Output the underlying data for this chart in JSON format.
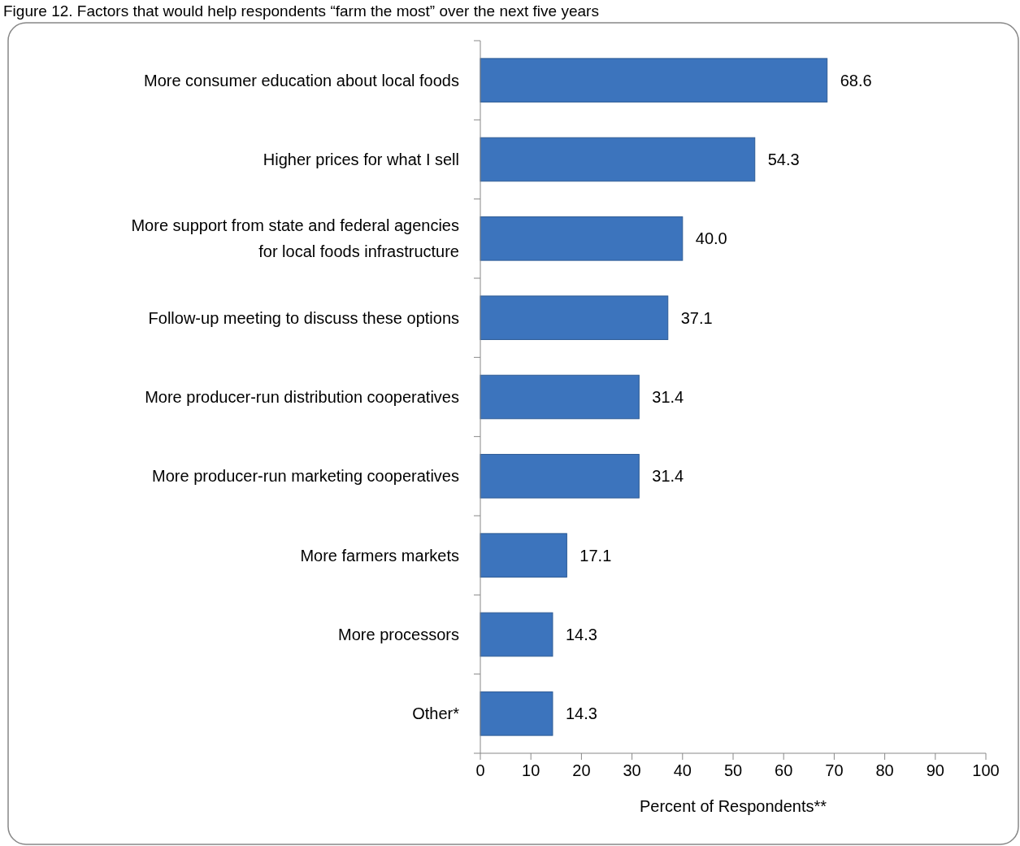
{
  "chart_data": {
    "type": "bar",
    "orientation": "horizontal",
    "title": "Figure 12. Factors that would help respondents “farm the most” over the next five years",
    "xlabel": "Percent of Respondents**",
    "categories": [
      "More consumer education about local foods",
      "Higher prices for what I sell",
      "More support from state and federal agencies for local foods infrastructure",
      "Follow-up meeting to discuss these options",
      "More producer-run distribution cooperatives",
      "More producer-run marketing cooperatives",
      "More farmers markets",
      "More processors",
      "Other*"
    ],
    "values": [
      68.6,
      54.3,
      40.0,
      37.1,
      31.4,
      31.4,
      17.1,
      14.3,
      14.3
    ],
    "value_labels": [
      "68.6",
      "54.3",
      "40.0",
      "37.1",
      "31.4",
      "31.4",
      "17.1",
      "14.3",
      "14.3"
    ],
    "color": "#3c74bd",
    "xlim": [
      0,
      100
    ],
    "xticks": [
      0,
      10,
      20,
      30,
      40,
      50,
      60,
      70,
      80,
      90,
      100
    ],
    "grid": false
  }
}
